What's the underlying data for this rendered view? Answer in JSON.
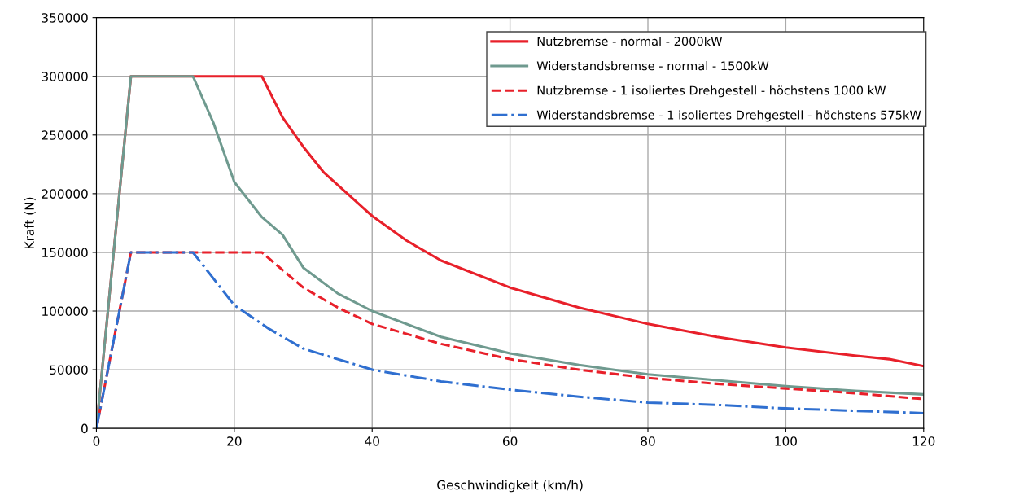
{
  "chart_data": {
    "type": "line",
    "xlabel": "Geschwindigkeit (km/h)",
    "ylabel": "Kraft (N)",
    "xlim": [
      0,
      120
    ],
    "xticks": [
      0,
      20,
      40,
      60,
      80,
      100,
      120
    ],
    "ylim": [
      0,
      350000
    ],
    "yticks": [
      0,
      50000,
      100000,
      150000,
      200000,
      250000,
      300000,
      350000
    ],
    "grid": true,
    "legend": "top right",
    "marker": "none",
    "series": [
      {
        "name": "Nutzbremse - normal - 2000kW",
        "color": "#e8202a",
        "line_style": "solid",
        "x": [
          0,
          5,
          24,
          27,
          30,
          33,
          40,
          45,
          50,
          60,
          70,
          80,
          90,
          100,
          110,
          115,
          120
        ],
        "values": [
          0,
          300000,
          300000,
          265000,
          240000,
          218000,
          181000,
          160000,
          143000,
          120000,
          103000,
          89000,
          78000,
          69000,
          62000,
          59000,
          53000
        ]
      },
      {
        "name": "Widerstandsbremse - normal - 1500kW",
        "color": "#6f9a8f",
        "line_style": "solid",
        "x": [
          0,
          5,
          14,
          17,
          20,
          24,
          27,
          30,
          35,
          40,
          50,
          60,
          70,
          80,
          90,
          100,
          110,
          120
        ],
        "values": [
          0,
          300000,
          300000,
          260000,
          210000,
          180000,
          165000,
          137000,
          115000,
          100000,
          78000,
          64000,
          54000,
          46000,
          41000,
          36000,
          32000,
          29000
        ]
      },
      {
        "name": "Nutzbremse - 1 isoliertes Drehgestell - höchstens 1000 kW",
        "color": "#e8202a",
        "line_style": "dashed",
        "x": [
          0,
          5,
          24,
          30,
          35,
          40,
          50,
          60,
          70,
          80,
          90,
          100,
          110,
          120
        ],
        "values": [
          0,
          150000,
          150000,
          120000,
          103000,
          89000,
          72000,
          59000,
          50000,
          43000,
          38000,
          34000,
          30000,
          25000
        ]
      },
      {
        "name": "Widerstandsbremse - 1 isoliertes Drehgestell - höchstens 575kW",
        "color": "#2f6fd0",
        "line_style": "dashdot",
        "x": [
          0,
          5,
          14,
          20,
          25,
          30,
          40,
          50,
          60,
          70,
          80,
          90,
          100,
          110,
          120
        ],
        "values": [
          0,
          150000,
          150000,
          105000,
          85000,
          68000,
          50000,
          40000,
          33000,
          27000,
          22000,
          20000,
          17000,
          15000,
          13000
        ]
      }
    ]
  }
}
